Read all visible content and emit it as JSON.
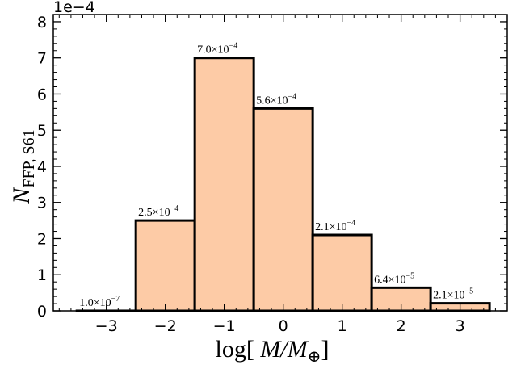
{
  "chart_data": {
    "type": "bar",
    "bin_edges": [
      -3.5,
      -2.5,
      -1.5,
      -0.5,
      0.5,
      1.5,
      2.5,
      3.5
    ],
    "x": [
      -3,
      -2,
      -1,
      0,
      1,
      2,
      3
    ],
    "values": [
      1e-07,
      0.00025,
      0.0007,
      0.00056,
      0.00021,
      6.4e-05,
      2.1e-05
    ],
    "data_labels": [
      {
        "mantissa": "1.0",
        "times": "×10",
        "exp": "−7"
      },
      {
        "mantissa": "2.5",
        "times": "×10",
        "exp": "−4"
      },
      {
        "mantissa": "7.0",
        "times": "×10",
        "exp": "−4"
      },
      {
        "mantissa": "5.6",
        "times": "×10",
        "exp": "−4"
      },
      {
        "mantissa": "2.1",
        "times": "×10",
        "exp": "−4"
      },
      {
        "mantissa": "6.4",
        "times": "×10",
        "exp": "−5"
      },
      {
        "mantissa": "2.1",
        "times": "×10",
        "exp": "−5"
      }
    ],
    "xlim": [
      -3.9,
      3.8
    ],
    "ylim": [
      0,
      0.00082
    ],
    "x_ticks": [
      -3,
      -2,
      -1,
      0,
      1,
      2,
      3
    ],
    "x_tick_labels": [
      "−3",
      "−2",
      "−1",
      "0",
      "1",
      "2",
      "3"
    ],
    "y_ticks": [
      0,
      0.0001,
      0.0002,
      0.0003,
      0.0004,
      0.0005,
      0.0006,
      0.0007,
      0.0008
    ],
    "y_tick_labels": [
      "0",
      "1",
      "2",
      "3",
      "4",
      "5",
      "6",
      "7",
      "8"
    ],
    "y_offset_text": "1e−4",
    "xlabel": {
      "prefix": "log[ ",
      "var": "M",
      "sep": "/",
      "var2": "M",
      "sub": "⊕",
      "suffix": "]"
    },
    "ylabel": {
      "var": "N",
      "sub": "FFP, S61"
    },
    "bar_fill": "#fdcba6",
    "bar_edge": "#000000",
    "grid": false,
    "legend": false
  }
}
